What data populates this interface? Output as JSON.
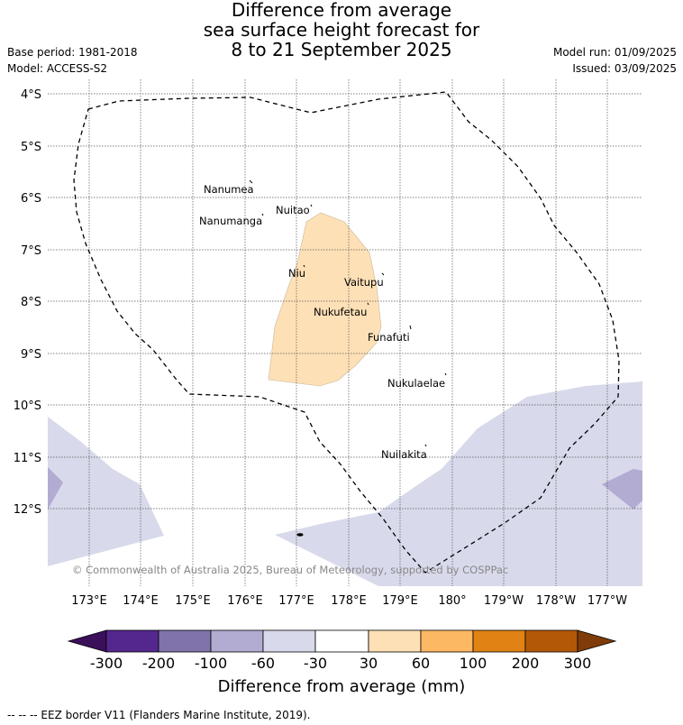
{
  "title": {
    "line1": "Difference from average",
    "line2": "sea surface height forecast for",
    "line3": "8 to 21 September 2025"
  },
  "meta": {
    "base_period": "Base period: 1981-2018",
    "model": "Model: ACCESS-S2",
    "model_run": "Model run: 01/09/2025",
    "issued": "Issued: 03/09/2025"
  },
  "map": {
    "lat_labels": [
      "4°S",
      "5°S",
      "6°S",
      "7°S",
      "8°S",
      "9°S",
      "10°S",
      "11°S",
      "12°S"
    ],
    "lon_labels": [
      "173°E",
      "174°E",
      "175°E",
      "176°E",
      "177°E",
      "178°E",
      "179°E",
      "180°",
      "179°W",
      "178°W",
      "177°W"
    ],
    "islands": [
      "Nanumea",
      "Nuitao",
      "Nanumanga",
      "Niu",
      "Vaitupu",
      "Nukufetau",
      "Funafuti",
      "Nukulaelae",
      "Nuilakita"
    ],
    "copyright": "© Commonwealth of Australia 2025, Bureau of Meteorology, supported by COSPPac"
  },
  "colorbar": {
    "ticks": [
      "-300",
      "-200",
      "-100",
      "-60",
      "-30",
      "30",
      "60",
      "100",
      "200",
      "300"
    ],
    "colors": [
      "#3b0f5a",
      "#54278f",
      "#8073ac",
      "#b2abd2",
      "#d8daeb",
      "#ffffff",
      "#fee0b6",
      "#fdb863",
      "#e08214",
      "#b35806",
      "#7f3b08"
    ],
    "label": "Difference from average (mm)"
  },
  "footnote": "--  --  -- EEZ border V11 (Flanders Marine Institute, 2019)."
}
